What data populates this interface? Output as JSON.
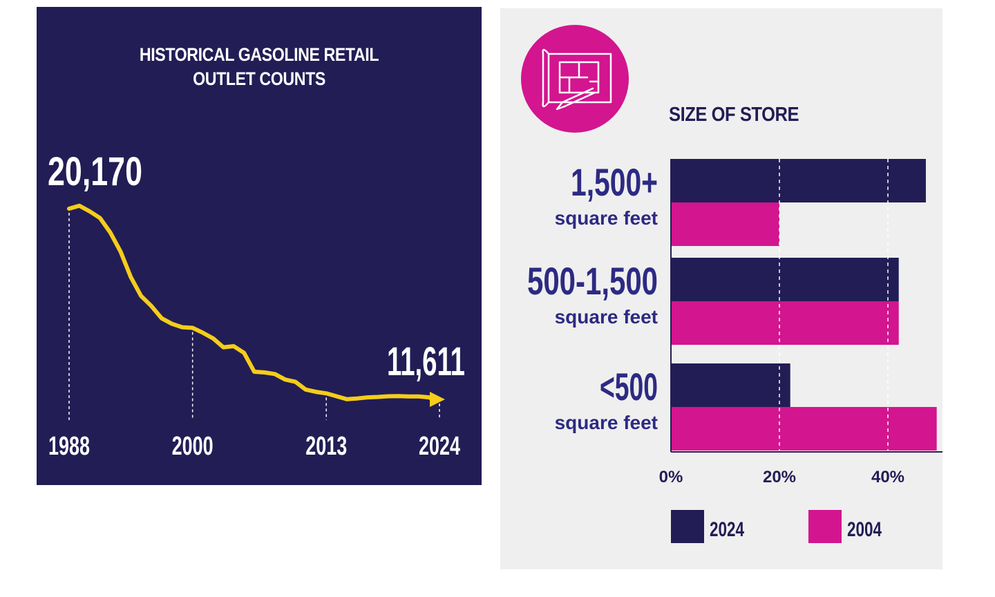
{
  "chart_data": [
    {
      "type": "line",
      "title_lines": [
        "HISTORICAL GASOLINE RETAIL",
        "OUTLET COUNTS"
      ],
      "x_ticks": [
        "1988",
        "2000",
        "2013",
        "2024"
      ],
      "start_label": "20,170",
      "end_label": "11,611",
      "series": [
        {
          "x": [
            1988,
            1989,
            1990,
            1991,
            1992,
            1993,
            1994,
            1995,
            1996,
            1997,
            1998,
            1999,
            2000,
            2001,
            2002,
            2003,
            2004,
            2005,
            2006,
            2007,
            2008,
            2009,
            2010,
            2011,
            2012,
            2013,
            2014,
            2015,
            2016,
            2017,
            2018,
            2019,
            2020,
            2021,
            2022,
            2023,
            2024
          ],
          "y": [
            20170,
            20300,
            20050,
            19750,
            19100,
            18250,
            17100,
            16250,
            15800,
            15250,
            15000,
            14850,
            14820,
            14600,
            14350,
            13950,
            14000,
            13700,
            12850,
            12820,
            12750,
            12500,
            12400,
            12050,
            11950,
            11880,
            11750,
            11620,
            11650,
            11700,
            11720,
            11750,
            11760,
            11740,
            11740,
            11700,
            11611
          ],
          "color": "#f5cd1a"
        }
      ],
      "colors": {
        "background": "#221d55",
        "line": "#f5cd1a",
        "text": "#ffffff"
      }
    },
    {
      "type": "bar",
      "orientation": "horizontal",
      "title": "SIZE OF STORE",
      "categories": [
        {
          "main": "1,500+",
          "sub": "square feet"
        },
        {
          "main": "500-1,500",
          "sub": "square feet"
        },
        {
          "main": "<500",
          "sub": "square feet"
        }
      ],
      "series": [
        {
          "name": "2024",
          "values": [
            47,
            42,
            22
          ],
          "color": "#221d55"
        },
        {
          "name": "2004",
          "values": [
            20,
            42,
            49
          ],
          "color": "#d3158f"
        }
      ],
      "x_ticks": [
        "0%",
        "20%",
        "40%"
      ],
      "x_tick_values": [
        0,
        20,
        40
      ],
      "xlim": [
        0,
        50
      ],
      "grid": "vertical dashed",
      "legend_position": "bottom",
      "colors": {
        "category_text": "#2d2a83",
        "background": "#efefef"
      }
    }
  ],
  "icon": {
    "name": "blueprint-icon",
    "circle_color": "#d3158f"
  }
}
